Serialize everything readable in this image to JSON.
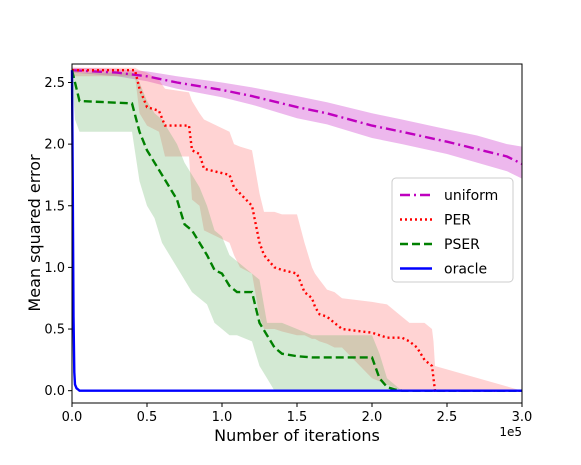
{
  "chart_data": {
    "type": "line",
    "xlabel": "Number of iterations",
    "ylabel": "Mean squared error",
    "x_sci_multiplier": "1e5",
    "xlim": [
      0,
      3.0
    ],
    "ylim": [
      -0.1,
      2.65
    ],
    "xticks": [
      0.0,
      0.5,
      1.0,
      1.5,
      2.0,
      2.5,
      3.0
    ],
    "xtick_labels": [
      "0.0",
      "0.5",
      "1.0",
      "1.5",
      "2.0",
      "2.5",
      "3.0"
    ],
    "yticks": [
      0.0,
      0.5,
      1.0,
      1.5,
      2.0,
      2.5
    ],
    "ytick_labels": [
      "0.0",
      "0.5",
      "1.0",
      "1.5",
      "2.0",
      "2.5"
    ],
    "grid": false,
    "legend_position": "center-right",
    "series": [
      {
        "name": "uniform",
        "color": "#bf00bf",
        "band_color": "#bf00bf",
        "dash": "dashdot",
        "x": [
          0,
          0.3,
          0.5,
          0.7,
          1.0,
          1.2,
          1.5,
          1.7,
          2.0,
          2.2,
          2.5,
          2.7,
          2.9,
          3.0
        ],
        "y": [
          2.6,
          2.58,
          2.55,
          2.5,
          2.44,
          2.39,
          2.3,
          2.25,
          2.15,
          2.1,
          2.02,
          1.96,
          1.9,
          1.84
        ],
        "upper": [
          2.62,
          2.61,
          2.59,
          2.55,
          2.5,
          2.46,
          2.39,
          2.34,
          2.25,
          2.2,
          2.12,
          2.07,
          2.0,
          1.98
        ],
        "lower": [
          2.58,
          2.55,
          2.51,
          2.45,
          2.38,
          2.32,
          2.21,
          2.16,
          2.05,
          2.0,
          1.92,
          1.85,
          1.78,
          1.72
        ]
      },
      {
        "name": "PER",
        "color": "#ff0000",
        "band_color": "#ff6060",
        "dash": "dotted",
        "x": [
          0,
          0.42,
          0.45,
          0.5,
          0.58,
          0.62,
          0.78,
          0.8,
          0.85,
          0.88,
          1.05,
          1.08,
          1.12,
          1.2,
          1.25,
          1.28,
          1.35,
          1.4,
          1.5,
          1.55,
          1.6,
          1.62,
          1.65,
          1.7,
          1.75,
          1.8,
          2.0,
          2.1,
          2.2,
          2.25,
          2.3,
          2.35,
          2.4,
          2.41,
          2.42,
          3.0
        ],
        "y": [
          2.6,
          2.6,
          2.45,
          2.3,
          2.27,
          2.15,
          2.15,
          1.95,
          1.92,
          1.8,
          1.75,
          1.65,
          1.6,
          1.5,
          1.2,
          1.1,
          1.0,
          0.98,
          0.95,
          0.8,
          0.75,
          0.68,
          0.62,
          0.6,
          0.55,
          0.5,
          0.47,
          0.43,
          0.43,
          0.4,
          0.35,
          0.25,
          0.2,
          0.1,
          0.0,
          0.0
        ],
        "upper": [
          2.62,
          2.62,
          2.6,
          2.58,
          2.52,
          2.45,
          2.42,
          2.35,
          2.25,
          2.2,
          2.1,
          2.0,
          1.98,
          1.95,
          1.6,
          1.45,
          1.45,
          1.43,
          1.43,
          1.2,
          1.0,
          0.95,
          0.9,
          0.82,
          0.8,
          0.75,
          0.72,
          0.7,
          0.6,
          0.55,
          0.55,
          0.55,
          0.5,
          0.4,
          0.2,
          0.0
        ],
        "lower": [
          2.55,
          2.55,
          2.25,
          2.15,
          2.1,
          1.9,
          1.9,
          1.55,
          1.5,
          1.3,
          1.2,
          1.1,
          1.0,
          0.95,
          0.6,
          0.5,
          0.5,
          0.48,
          0.45,
          0.45,
          0.42,
          0.42,
          0.4,
          0.38,
          0.35,
          0.35,
          0.1,
          0.05,
          0.0,
          0.0,
          0.0,
          0.0,
          0.0,
          0.0,
          0.0,
          0.0
        ]
      },
      {
        "name": "PSER",
        "color": "#008000",
        "band_color": "#60b060",
        "dash": "dashed",
        "x": [
          0,
          0.02,
          0.05,
          0.4,
          0.45,
          0.5,
          0.55,
          0.6,
          0.7,
          0.75,
          0.8,
          0.85,
          0.9,
          0.95,
          1.0,
          1.05,
          1.1,
          1.2,
          1.25,
          1.3,
          1.35,
          1.4,
          1.5,
          1.6,
          1.7,
          1.8,
          2.0,
          2.05,
          2.1,
          2.15,
          2.2,
          3.0
        ],
        "y": [
          2.6,
          2.5,
          2.35,
          2.33,
          2.1,
          1.95,
          1.85,
          1.75,
          1.55,
          1.35,
          1.3,
          1.2,
          1.1,
          0.98,
          0.95,
          0.85,
          0.8,
          0.8,
          0.55,
          0.45,
          0.35,
          0.3,
          0.28,
          0.27,
          0.27,
          0.27,
          0.27,
          0.1,
          0.03,
          0.01,
          0.0,
          0.0
        ],
        "upper": [
          2.62,
          2.6,
          2.58,
          2.58,
          2.5,
          2.35,
          2.25,
          2.2,
          2.0,
          1.85,
          1.75,
          1.65,
          1.5,
          1.3,
          1.25,
          1.1,
          1.05,
          0.95,
          0.9,
          0.55,
          0.55,
          0.55,
          0.5,
          0.45,
          0.45,
          0.45,
          0.45,
          0.3,
          0.1,
          0.05,
          0.0,
          0.0
        ],
        "lower": [
          2.55,
          2.2,
          2.1,
          2.1,
          1.7,
          1.5,
          1.4,
          1.2,
          1.0,
          0.9,
          0.8,
          0.75,
          0.7,
          0.55,
          0.5,
          0.45,
          0.45,
          0.4,
          0.2,
          0.1,
          0.0,
          0.0,
          0.0,
          0.0,
          0.0,
          0.0,
          0.0,
          0.0,
          0.0,
          0.0,
          0.0,
          0.0
        ]
      },
      {
        "name": "oracle",
        "color": "#0000ff",
        "dash": "solid",
        "x": [
          0,
          0.005,
          0.01,
          0.015,
          0.02,
          0.03,
          0.04,
          0.05,
          3.0
        ],
        "y": [
          2.6,
          1.6,
          0.6,
          0.15,
          0.05,
          0.02,
          0.01,
          0.0,
          0.0
        ]
      }
    ]
  }
}
